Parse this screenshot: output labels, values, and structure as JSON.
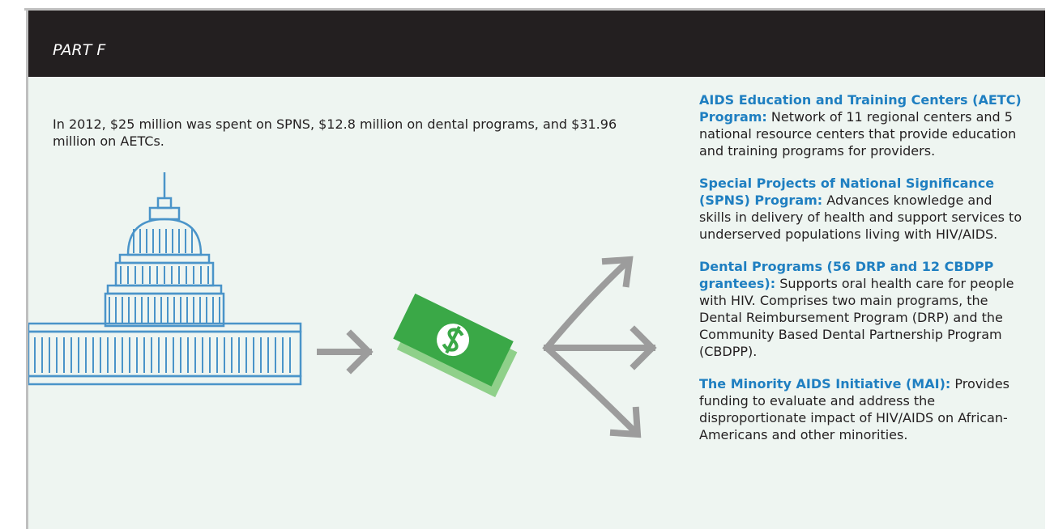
{
  "header": {
    "title": "PART F"
  },
  "intro": "In 2012, $25 million was spent on SPNS, $12.8 million on dental programs, and $31.96 million on AETCs.",
  "items": [
    {
      "title": "AIDS Education and Training Centers (AETC) Program:",
      "body": "Network of 11 regional centers and 5 national resource centers that provide education and training programs for providers."
    },
    {
      "title": "Special Projects of National Significance (SPNS) Program:",
      "body": "Advances knowledge and skills in delivery of health and support services to underserved populations living with HIV/AIDS."
    },
    {
      "title": "Dental Programs (56 DRP and 12 CBDPP grantees):",
      "body": "Supports oral health care for people with HIV. Comprises two main programs, the Dental Reimbursement Program (DRP) and the Community Based Dental Partnership Program (CBDPP)."
    },
    {
      "title": "The Minority AIDS Initiative (MAI):",
      "body": "Provides funding to evaluate and address the disproportionate impact of HIV/AIDS on African-Americans and other minorities."
    }
  ]
}
